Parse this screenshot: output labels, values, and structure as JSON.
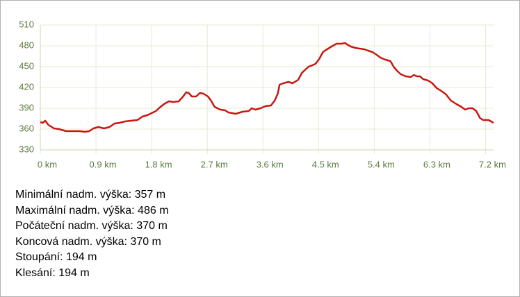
{
  "chart_data": {
    "type": "line",
    "x": [
      0,
      0.04,
      0.08,
      0.13,
      0.22,
      0.3,
      0.42,
      0.53,
      0.64,
      0.72,
      0.79,
      0.86,
      0.94,
      1.03,
      1.12,
      1.2,
      1.28,
      1.37,
      1.46,
      1.57,
      1.65,
      1.73,
      1.8,
      1.87,
      1.93,
      2.0,
      2.08,
      2.15,
      2.24,
      2.3,
      2.36,
      2.4,
      2.45,
      2.52,
      2.58,
      2.64,
      2.71,
      2.76,
      2.82,
      2.91,
      2.99,
      3.04,
      3.16,
      3.27,
      3.37,
      3.42,
      3.48,
      3.56,
      3.64,
      3.73,
      3.79,
      3.84,
      3.87,
      3.93,
      4.01,
      4.08,
      4.17,
      4.23,
      4.29,
      4.34,
      4.4,
      4.45,
      4.51,
      4.57,
      4.62,
      4.71,
      4.79,
      4.87,
      4.93,
      4.96,
      5.02,
      5.09,
      5.16,
      5.24,
      5.3,
      5.37,
      5.44,
      5.5,
      5.58,
      5.66,
      5.72,
      5.78,
      5.83,
      5.91,
      5.99,
      6.04,
      6.09,
      6.14,
      6.19,
      6.27,
      6.34,
      6.41,
      6.5,
      6.56,
      6.64,
      6.73,
      6.81,
      6.87,
      6.93,
      6.99,
      7.05,
      7.11,
      7.16,
      7.25,
      7.33
    ],
    "y": [
      370,
      369,
      372,
      366,
      361,
      360,
      357,
      357,
      357,
      356,
      357,
      361,
      363,
      361,
      363,
      368,
      369,
      371,
      372,
      373,
      378,
      380,
      383,
      386,
      391,
      396,
      400,
      399,
      400,
      406,
      413,
      412,
      407,
      407,
      412,
      411,
      407,
      401,
      392,
      388,
      387,
      384,
      382,
      385,
      386,
      390,
      388,
      390,
      393,
      394,
      401,
      411,
      424,
      426,
      428,
      426,
      431,
      441,
      446,
      450,
      452,
      454,
      461,
      471,
      474,
      479,
      483,
      483,
      484,
      482,
      479,
      477,
      476,
      475,
      473,
      471,
      467,
      463,
      460,
      458,
      449,
      443,
      439,
      436,
      435,
      438,
      436,
      436,
      432,
      430,
      426,
      419,
      414,
      410,
      401,
      396,
      392,
      388,
      390,
      390,
      386,
      376,
      373,
      373,
      369
    ],
    "color": "#c8170f",
    "xlim": [
      0,
      7.33
    ],
    "ylim": [
      330,
      510
    ],
    "xticks": [
      {
        "value": 0,
        "label": "0 km"
      },
      {
        "value": 0.9,
        "label": "0.9 km"
      },
      {
        "value": 1.8,
        "label": "1.8 km"
      },
      {
        "value": 2.7,
        "label": "2.7 km"
      },
      {
        "value": 3.6,
        "label": "3.6 km"
      },
      {
        "value": 4.5,
        "label": "4.5 km"
      },
      {
        "value": 5.4,
        "label": "5.4 km"
      },
      {
        "value": 6.3,
        "label": "6.3 km"
      },
      {
        "value": 7.2,
        "label": "7.2 km"
      }
    ],
    "yticks": [
      330,
      360,
      390,
      420,
      450,
      480,
      510
    ],
    "grid": true
  },
  "stats": [
    "Minimální nadm. výška: 357 m",
    "Maximální nadm. výška: 486 m",
    "Počáteční nadm. výška: 370 m",
    "Koncová nadm. výška: 370 m",
    "Stoupání: 194 m",
    "Klesání: 194 m"
  ]
}
